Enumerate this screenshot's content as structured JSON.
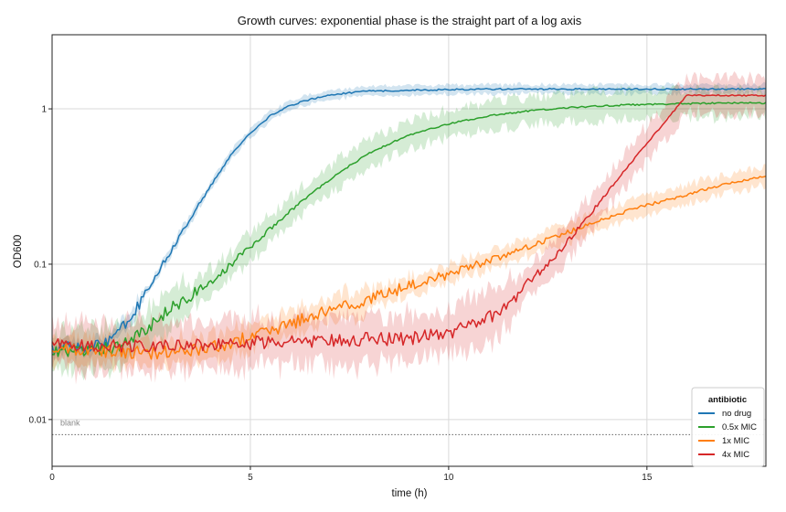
{
  "chart_data": {
    "type": "line",
    "title": "Growth curves: exponential phase is the straight part of a log axis",
    "xlabel": "time (h)",
    "ylabel": "OD600",
    "xlim": [
      0,
      18
    ],
    "ylim": [
      0.005,
      3.0
    ],
    "yscale": "log",
    "grid": true,
    "xticks": [
      0,
      5,
      10,
      15
    ],
    "xtick_labels": [
      "0",
      "5",
      "10",
      "15"
    ],
    "yticks": [
      0.01,
      0.1,
      1
    ],
    "ytick_labels": [
      "0.01",
      "0.1",
      "1"
    ],
    "legend": {
      "title": "antibiotic",
      "position": "lower-right"
    },
    "annotations": [
      {
        "text": "blank",
        "y": 0.008,
        "style": "dotted"
      }
    ],
    "series": [
      {
        "name": "no drug",
        "color": "#1f77b4",
        "band_halfwidth": 0.03,
        "x": [
          0,
          0.5,
          1.0,
          1.5,
          2.0,
          2.5,
          3.0,
          3.5,
          4.0,
          4.5,
          5.0,
          5.5,
          6.0,
          6.5,
          7.0,
          7.5,
          8.0,
          9.0,
          10.0,
          11.0,
          12.0,
          13.0,
          14.0,
          15.0,
          16.0,
          17.0,
          18.0
        ],
        "y": [
          0.028,
          0.029,
          0.029,
          0.032,
          0.045,
          0.075,
          0.12,
          0.2,
          0.32,
          0.5,
          0.7,
          0.9,
          1.05,
          1.15,
          1.22,
          1.27,
          1.3,
          1.32,
          1.33,
          1.34,
          1.34,
          1.34,
          1.34,
          1.34,
          1.34,
          1.34,
          1.34
        ]
      },
      {
        "name": "0.5x MIC",
        "color": "#2ca02c",
        "band_halfwidth": 0.09,
        "x": [
          0,
          0.5,
          1.0,
          1.5,
          2.0,
          2.5,
          3.0,
          3.5,
          4.0,
          4.5,
          5.0,
          5.5,
          6.0,
          6.5,
          7.0,
          7.5,
          8.0,
          9.0,
          10.0,
          11.0,
          12.0,
          13.0,
          14.0,
          15.0,
          16.0,
          17.0,
          18.0
        ],
        "y": [
          0.028,
          0.028,
          0.028,
          0.029,
          0.032,
          0.04,
          0.052,
          0.063,
          0.078,
          0.1,
          0.13,
          0.17,
          0.22,
          0.28,
          0.35,
          0.43,
          0.52,
          0.68,
          0.8,
          0.9,
          0.97,
          1.02,
          1.05,
          1.07,
          1.08,
          1.09,
          1.09
        ]
      },
      {
        "name": "1x MIC",
        "color": "#ff7f0e",
        "band_halfwidth": 0.06,
        "x": [
          0,
          1,
          2,
          3,
          4,
          5,
          6,
          7,
          8,
          9,
          10,
          11,
          12,
          13,
          14,
          15,
          16,
          17,
          18
        ],
        "y": [
          0.028,
          0.028,
          0.027,
          0.027,
          0.029,
          0.034,
          0.041,
          0.05,
          0.06,
          0.072,
          0.086,
          0.105,
          0.13,
          0.16,
          0.2,
          0.24,
          0.28,
          0.33,
          0.37
        ]
      },
      {
        "name": "4x MIC",
        "color": "#d62728",
        "band_halfwidth": 0.11,
        "x": [
          0,
          1,
          2,
          3,
          4,
          5,
          6,
          7,
          8,
          9,
          10,
          10.5,
          11,
          11.5,
          12,
          12.5,
          13,
          13.5,
          14,
          14.5,
          15,
          15.5,
          16,
          17,
          18
        ],
        "y": [
          0.03,
          0.03,
          0.03,
          0.03,
          0.03,
          0.031,
          0.032,
          0.032,
          0.033,
          0.033,
          0.036,
          0.04,
          0.045,
          0.055,
          0.075,
          0.1,
          0.14,
          0.2,
          0.29,
          0.42,
          0.6,
          0.85,
          1.22,
          1.22,
          1.22
        ]
      }
    ]
  }
}
